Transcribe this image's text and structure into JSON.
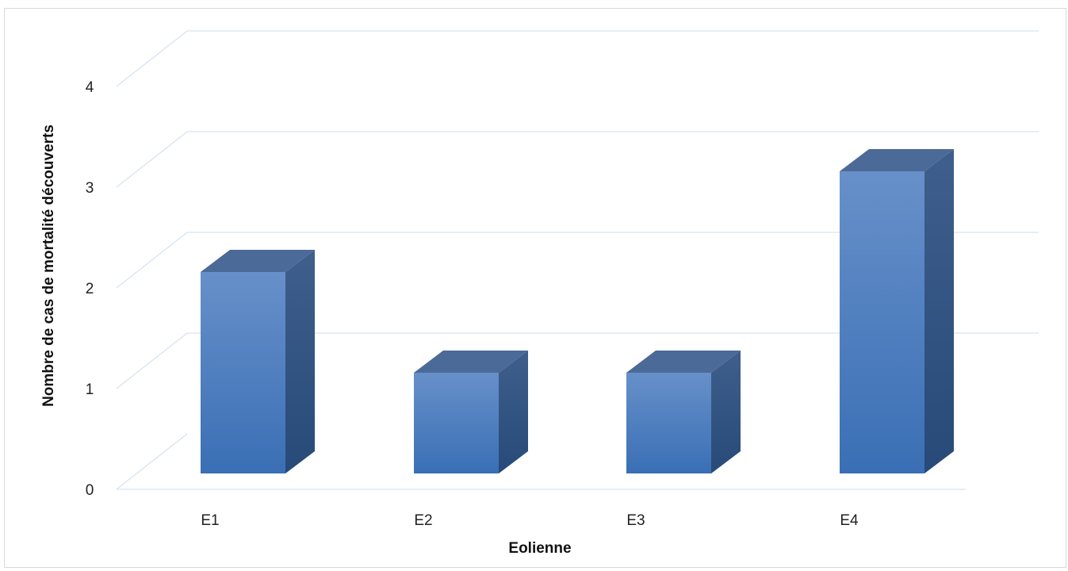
{
  "chart_data": {
    "type": "bar",
    "style": "3d-column",
    "categories": [
      "E1",
      "E2",
      "E3",
      "E4"
    ],
    "values": [
      2,
      1,
      1,
      3
    ],
    "title": "",
    "xlabel": "Eolienne",
    "ylabel": "Nombre de cas de mortalité découverts",
    "ylim": [
      0,
      4
    ],
    "yticks": [
      "0",
      "1",
      "2",
      "3",
      "4"
    ],
    "grid": true,
    "legend": "none"
  },
  "colors": {
    "bar_front_top": "#6790c9",
    "bar_front_bottom": "#3a6fb5",
    "bar_side_top": "#3f5f8c",
    "bar_side_bottom": "#274a78",
    "bar_top": "#4b6a97",
    "gridline": "#d6e3f0",
    "frame": "#d9d9d9"
  }
}
